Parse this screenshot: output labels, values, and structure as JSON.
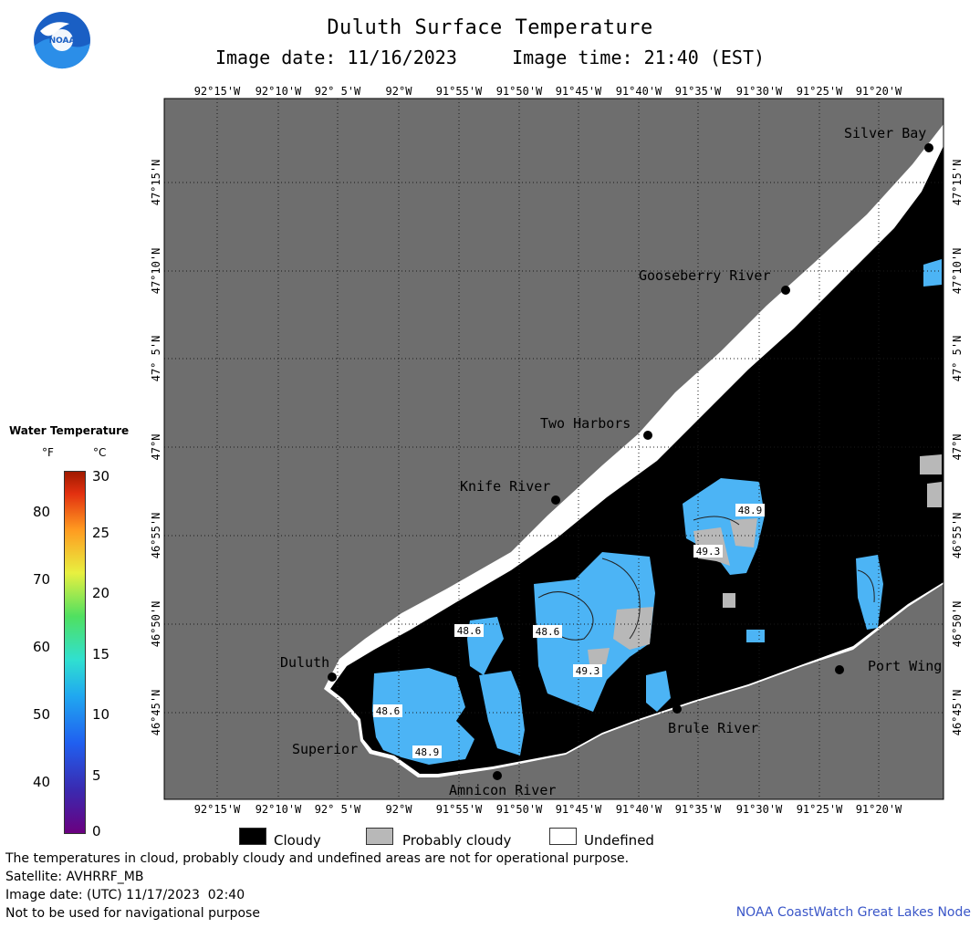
{
  "title": "Duluth Surface Temperature",
  "subtitle": "Image date: 11/16/2023     Image time: 21:40 (EST)",
  "logo_text": "NOAA",
  "lon_labels": [
    "92°15'W",
    "92°10'W",
    "92° 5'W",
    "92°W",
    "91°55'W",
    "91°50'W",
    "91°45'W",
    "91°40'W",
    "91°35'W",
    "91°30'W",
    "91°25'W",
    "91°20'W"
  ],
  "lat_labels": [
    "47°15'N",
    "47°10'N",
    "47° 5'N",
    "47°N",
    "46°55'N",
    "46°50'N",
    "46°45'N"
  ],
  "places": [
    {
      "name": "Silver Bay"
    },
    {
      "name": "Gooseberry River"
    },
    {
      "name": "Two Harbors"
    },
    {
      "name": "Knife River"
    },
    {
      "name": "Duluth"
    },
    {
      "name": "Superior"
    },
    {
      "name": "Amnicon River"
    },
    {
      "name": "Brule River"
    },
    {
      "name": "Port Wing"
    }
  ],
  "temp_labels": [
    "48.9",
    "49.3",
    "48.6",
    "48.6",
    "49.3",
    "48.6",
    "48.9"
  ],
  "legend": {
    "title": "Water Temperature",
    "unit_f": "°F",
    "unit_c": "°C",
    "f_ticks": [
      "80",
      "70",
      "60",
      "50",
      "40"
    ],
    "c_ticks": [
      "30",
      "25",
      "20",
      "15",
      "10",
      "5",
      "0"
    ]
  },
  "key": [
    {
      "label": "Cloudy",
      "color": "#000000"
    },
    {
      "label": "Probably cloudy",
      "color": "#b8b8b8"
    },
    {
      "label": "Undefined",
      "color": "#ffffff"
    }
  ],
  "colors": {
    "land": "#6e6e6e",
    "cloud": "#000000",
    "water_warm": "#4cb4f5",
    "probably_cloudy": "#b8b8b8"
  },
  "footer": {
    "line1": "The temperatures in cloud, probably cloudy and undefined areas are not for operational purpose.",
    "line2": "Satellite: AVHRRF_MB",
    "line3": "Image date: (UTC) 11/17/2023  02:40",
    "line4": "Not to be used for navigational purpose",
    "credit": "NOAA CoastWatch Great Lakes Node"
  }
}
